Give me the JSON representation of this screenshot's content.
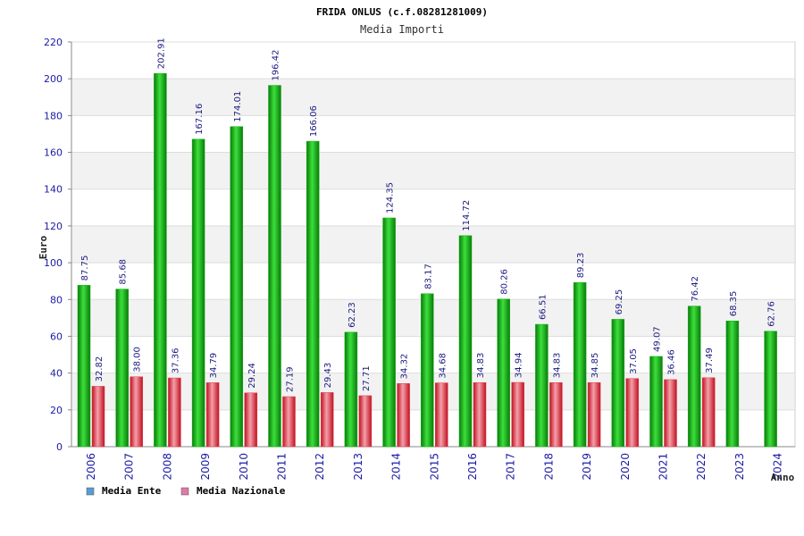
{
  "colors": {
    "ente_bar": "#16b216",
    "nazionale_bar": "#e23b4b",
    "legend_ente": "#5b9bd5",
    "legend_nazionale": "#e07aa8",
    "band": "#f2f2f2",
    "axis_text": "#1a1aa6"
  },
  "chart_data": {
    "type": "bar",
    "title": "FRIDA ONLUS (c.f.08281281009)",
    "subtitle": "Media Importi",
    "xlabel": "Anno",
    "ylabel": "Euro",
    "ylim": [
      0,
      220
    ],
    "yticks": [
      0,
      20,
      40,
      60,
      80,
      100,
      120,
      140,
      160,
      180,
      200,
      220
    ],
    "grid": true,
    "legend_position": "bottom-left",
    "categories": [
      "2006",
      "2007",
      "2008",
      "2009",
      "2010",
      "2011",
      "2012",
      "2013",
      "2014",
      "2015",
      "2016",
      "2017",
      "2018",
      "2019",
      "2020",
      "2021",
      "2022",
      "2023",
      "2024"
    ],
    "series": [
      {
        "name": "Media Ente",
        "values": [
          87.75,
          85.68,
          202.91,
          167.16,
          174.01,
          196.42,
          166.06,
          62.23,
          124.35,
          83.17,
          114.72,
          80.26,
          66.51,
          89.23,
          69.25,
          49.07,
          76.42,
          68.35,
          62.76
        ],
        "labels": [
          "87.75",
          "85.68",
          "202.91",
          "167.16",
          "174.01",
          "196.42",
          "166.06",
          "62.23",
          "124.35",
          "83.17",
          "114.72",
          "80.26",
          "66.51",
          "89.23",
          "69.25",
          "49.07",
          "76.42",
          "68.35",
          "62.76"
        ]
      },
      {
        "name": "Media Nazionale",
        "values": [
          32.82,
          38.0,
          37.36,
          34.79,
          29.24,
          27.19,
          29.43,
          27.71,
          34.32,
          34.68,
          34.83,
          34.94,
          34.83,
          34.85,
          37.05,
          36.46,
          37.49,
          null,
          null
        ],
        "labels": [
          "32.82",
          "38.00",
          "37.36",
          "34.79",
          "29.24",
          "27.19",
          "29.43",
          "27.71",
          "34.32",
          "34.68",
          "34.83",
          "34.94",
          "34.83",
          "34.85",
          "37.05",
          "36.46",
          "37.49",
          null,
          null
        ]
      }
    ]
  }
}
